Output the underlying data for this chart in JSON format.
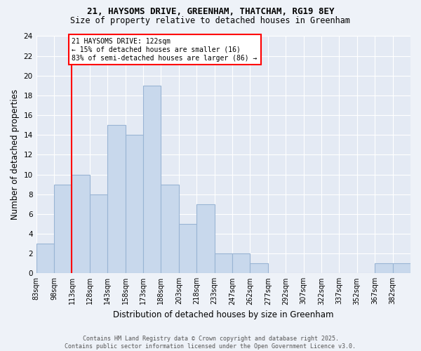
{
  "title_line1": "21, HAYSOMS DRIVE, GREENHAM, THATCHAM, RG19 8EY",
  "title_line2": "Size of property relative to detached houses in Greenham",
  "xlabel": "Distribution of detached houses by size in Greenham",
  "ylabel": "Number of detached properties",
  "categories": [
    "83sqm",
    "98sqm",
    "113sqm",
    "128sqm",
    "143sqm",
    "158sqm",
    "173sqm",
    "188sqm",
    "203sqm",
    "218sqm",
    "233sqm",
    "247sqm",
    "262sqm",
    "277sqm",
    "292sqm",
    "307sqm",
    "322sqm",
    "337sqm",
    "352sqm",
    "367sqm",
    "382sqm"
  ],
  "values": [
    3,
    9,
    10,
    8,
    15,
    14,
    19,
    9,
    5,
    7,
    2,
    2,
    1,
    0,
    0,
    0,
    0,
    0,
    0,
    1,
    1
  ],
  "bar_color": "#c8d8ec",
  "bar_edge_color": "#99b4d4",
  "vline_x": 113,
  "vline_color": "red",
  "annotation_text": "21 HAYSOMS DRIVE: 122sqm\n← 15% of detached houses are smaller (16)\n83% of semi-detached houses are larger (86) →",
  "annotation_box_color": "white",
  "annotation_box_edge": "red",
  "ylim": [
    0,
    24
  ],
  "yticks": [
    0,
    2,
    4,
    6,
    8,
    10,
    12,
    14,
    16,
    18,
    20,
    22,
    24
  ],
  "footer_line1": "Contains HM Land Registry data © Crown copyright and database right 2025.",
  "footer_line2": "Contains public sector information licensed under the Open Government Licence v3.0.",
  "bg_color": "#eef2f8",
  "plot_bg_color": "#e4eaf4",
  "grid_color": "white",
  "bin_width": 15,
  "figwidth": 6.0,
  "figheight": 5.0
}
